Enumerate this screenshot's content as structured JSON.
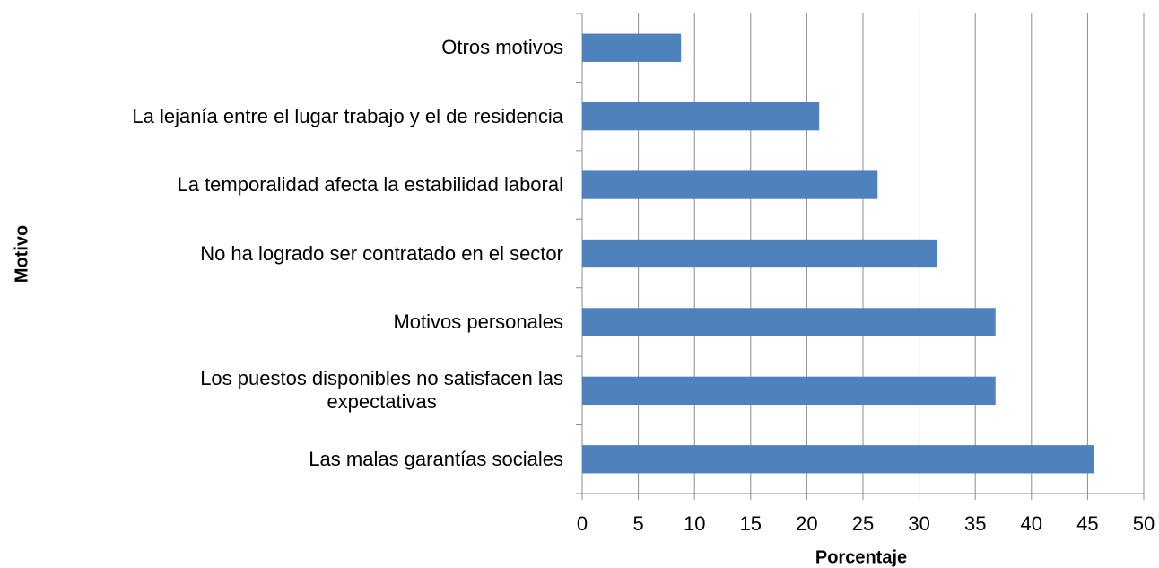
{
  "chart_data": {
    "type": "bar",
    "orientation": "horizontal",
    "x_label": "Porcentaje",
    "y_label": "Motivo",
    "categories": [
      "Otros motivos",
      "La lejanía entre el lugar trabajo y el de residencia",
      "La temporalidad afecta la estabilidad laboral",
      "No ha logrado ser contratado en el sector",
      "Motivos personales",
      "Los puestos disponibles no satisfacen las\nexpectativas",
      "Las malas garantías sociales"
    ],
    "values": [
      8.8,
      21.1,
      26.3,
      31.6,
      36.8,
      36.8,
      45.6
    ],
    "color": "#4f81bd",
    "xlim": [
      0,
      50
    ],
    "xticks": [
      0,
      5,
      10,
      15,
      20,
      25,
      30,
      35,
      40,
      45,
      50
    ],
    "grid": true
  }
}
